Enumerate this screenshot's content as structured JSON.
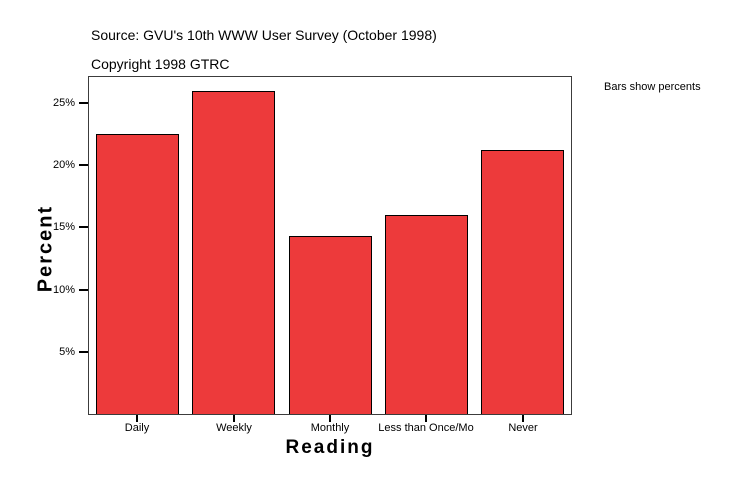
{
  "header": {
    "source_line": "Source: GVU's 10th WWW User Survey (October 1998)",
    "copyright_line": "Copyright 1998 GTRC"
  },
  "annotation": "Bars show percents",
  "colors": {
    "bar_fill": "#ED3A3B",
    "bar_border": "#000000",
    "frame_border": "#3C3C3C",
    "text": "#000000",
    "background": "#FFFFFF"
  },
  "chart_data": {
    "type": "bar",
    "title": "",
    "xlabel": "Reading",
    "ylabel": "Percent",
    "categories": [
      "Daily",
      "Weekly",
      "Monthly",
      "Less than Once/Mo",
      "Never"
    ],
    "values": [
      22.5,
      26.0,
      14.3,
      16.0,
      21.2
    ],
    "unit": "percent",
    "yticks": [
      5,
      10,
      15,
      20,
      25
    ],
    "ytick_labels": [
      "5%",
      "10%",
      "15%",
      "20%",
      "25%"
    ],
    "ylim": [
      0,
      27.1
    ],
    "grid": false,
    "legend": "none",
    "bar_note": "Bars show percents"
  }
}
